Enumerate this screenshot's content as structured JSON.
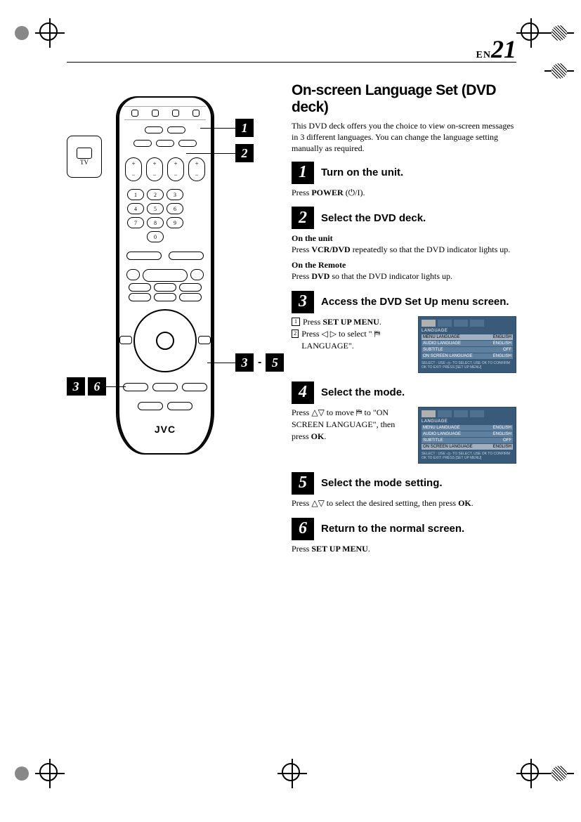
{
  "page": {
    "prefix": "EN",
    "number": "21"
  },
  "title": "On-screen Language Set (DVD deck)",
  "intro": "This DVD deck offers you the choice to view on-screen messages in 3 different languages. You can change the language setting manually as required.",
  "remote": {
    "brand": "JVC",
    "tvlabel": "TV",
    "numpad": [
      "1",
      "2",
      "3",
      "",
      "4",
      "5",
      "6",
      "",
      "7",
      "8",
      "9",
      "",
      "",
      "0",
      "",
      ""
    ],
    "callouts": {
      "c1": "1",
      "c2": "2",
      "c3a": "3",
      "c3b": "5",
      "c4a": "3",
      "c4b": "6"
    }
  },
  "steps": [
    {
      "num": "1",
      "title": "Turn on the unit.",
      "body_html": "Press <b>POWER</b> (⏻/I)."
    },
    {
      "num": "2",
      "title": "Select the DVD deck.",
      "sections": [
        {
          "head": "On the unit",
          "body_html": "Press <b>VCR/DVD</b> repeatedly so that the DVD indicator lights up."
        },
        {
          "head": "On the Remote",
          "body_html": "Press <b>DVD</b> so that the DVD indicator lights up."
        }
      ]
    },
    {
      "num": "3",
      "title": "Access the DVD Set Up menu screen.",
      "substeps": [
        {
          "n": "1",
          "html": "Press <b>SET UP MENU</b>."
        },
        {
          "n": "2",
          "html": "Press ◁ ▷ to select \" ⛿ LANGUAGE\"."
        }
      ],
      "menu": {
        "header": "LANGUAGE",
        "rows": [
          {
            "k": "MENU LANGUAGE",
            "v": "ENGLISH",
            "hl": true
          },
          {
            "k": "AUDIO LANGUAGE",
            "v": "ENGLISH"
          },
          {
            "k": "SUBTITLE",
            "v": "OFF"
          },
          {
            "k": "ON SCREEN LANGUAGE",
            "v": "ENGLISH"
          }
        ],
        "foot1": "SELECT : USE ◁▷ TO SELECT, USE OK TO CONFIRM",
        "foot2": "OK      TO EXIT: PRESS [SET UP MENU]"
      }
    },
    {
      "num": "4",
      "title": "Select the mode.",
      "body_html": "Press △▽ to move ⛿ to \"ON SCREEN LANGUAGE\", then press <b>OK</b>.",
      "menu": {
        "header": "LANGUAGE",
        "rows": [
          {
            "k": "MENU LANGUAGE",
            "v": "ENGLISH"
          },
          {
            "k": "AUDIO LANGUAGE",
            "v": "ENGLISH"
          },
          {
            "k": "SUBTITLE",
            "v": "OFF"
          },
          {
            "k": "ON SCREEN LANGUAGE",
            "v": "ENGLISH",
            "hl": true
          }
        ],
        "foot1": "SELECT : USE ◁▷ TO SELECT, USE OK TO CONFIRM",
        "foot2": "OK      TO EXIT: PRESS [SET UP MENU]"
      }
    },
    {
      "num": "5",
      "title": "Select the mode setting.",
      "body_html": "Press △▽ to select the desired setting, then press <b>OK</b>."
    },
    {
      "num": "6",
      "title": "Return to the normal screen.",
      "body_html": "Press <b>SET UP MENU</b>."
    }
  ]
}
